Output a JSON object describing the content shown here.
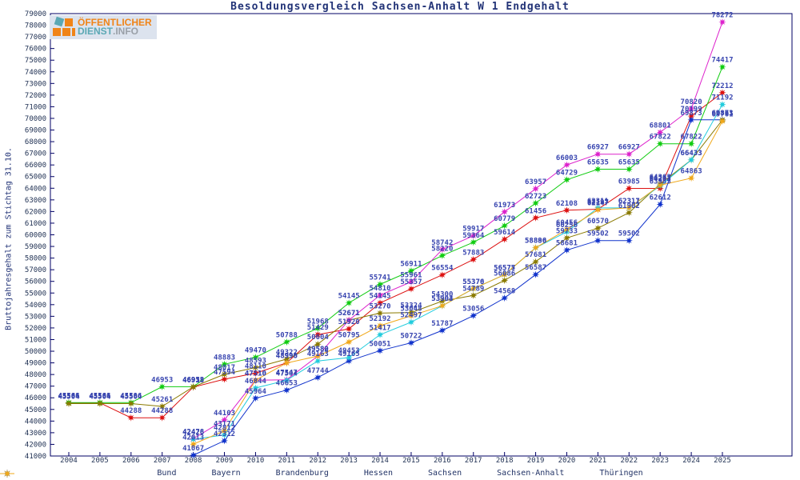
{
  "header": {
    "title": "Besoldungsvergleich Sachsen-Anhalt W 1 Endgehalt"
  },
  "logo": {
    "line1": "ÖFFENTLICHER",
    "line2": "DIENST",
    "line2b": ".INFO"
  },
  "chart_data": {
    "type": "line",
    "title": "Besoldungsvergleich Sachsen-Anhalt W 1 Endgehalt",
    "ylabel": "Bruttojahresgehalt zum Stichtag 31.10.",
    "xlabel": "",
    "x": [
      2004,
      2005,
      2006,
      2007,
      2008,
      2009,
      2010,
      2011,
      2012,
      2013,
      2014,
      2015,
      2016,
      2017,
      2018,
      2019,
      2020,
      2021,
      2022,
      2023,
      2024,
      2025
    ],
    "ylim": [
      41000,
      79000
    ],
    "ytick_step": 1000,
    "grid": false,
    "legend_position": "bottom",
    "label_color": "#3946b0",
    "axis_color": "#000066",
    "tick_text_color": "#223355",
    "series": [
      {
        "name": "Bund",
        "color": "#dd1111",
        "values": [
          45561,
          45561,
          44288,
          44288,
          46918,
          47594,
          48110,
          48998,
          51429,
          51920,
          54145,
          55357,
          56554,
          57883,
          59614,
          61456,
          62108,
          62197,
          63985,
          63985,
          70199,
          72212
        ]
      },
      {
        "name": "Bayern",
        "color": "#11cc11",
        "values": [
          45586,
          45586,
          45586,
          46953,
          46953,
          48883,
          49470,
          50788,
          51968,
          54145,
          55741,
          56911,
          58220,
          59364,
          60779,
          62723,
          64729,
          65635,
          65635,
          67822,
          67822,
          74417
        ]
      },
      {
        "name": "Brandenburg",
        "color": "#1133cc",
        "values": [
          null,
          null,
          null,
          null,
          41067,
          42312,
          45964,
          46653,
          47744,
          49165,
          50051,
          50722,
          51787,
          53056,
          54568,
          56587,
          58681,
          59502,
          59502,
          62612,
          69873,
          69873
        ]
      },
      {
        "name": "Hessen",
        "color": "#8a7a00",
        "values": [
          45504,
          45504,
          45504,
          45261,
          46938,
          48017,
          48593,
          49322,
          50604,
          52671,
          53270,
          53324,
          54300,
          54789,
          56086,
          57681,
          59733,
          60570,
          61902,
          64363,
          66433,
          69861
        ]
      },
      {
        "name": "Sachsen",
        "color": "#dd22cc",
        "values": [
          null,
          null,
          null,
          null,
          42478,
          44103,
          47510,
          47547,
          49582,
          52671,
          54810,
          55961,
          58742,
          59917,
          61973,
          63957,
          66003,
          66927,
          66927,
          68801,
          70820,
          78272
        ]
      },
      {
        "name": "Sachsen-Anhalt",
        "color": "#22ccdd",
        "values": [
          null,
          null,
          null,
          null,
          42426,
          42812,
          46844,
          47504,
          49163,
          49453,
          51417,
          52497,
          53903,
          55370,
          56575,
          58886,
          60256,
          62311,
          62311,
          64203,
          66433,
          71192
        ]
      },
      {
        "name": "Thüringen",
        "color": "#f0a81a",
        "values": [
          null,
          null,
          null,
          null,
          42013,
          43171,
          47510,
          48990,
          49580,
          50795,
          52192,
          53048,
          53904,
          55376,
          56577,
          58890,
          60456,
          62147,
          62317,
          64263,
          64863,
          69761
        ]
      }
    ]
  }
}
